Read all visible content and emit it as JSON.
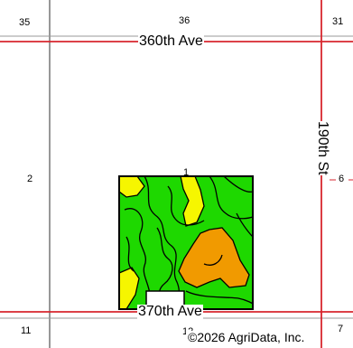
{
  "roads": {
    "north": "360th Ave",
    "south": "370th Ave",
    "east": "190th St"
  },
  "sections": {
    "nw": "35",
    "n": "36",
    "ne": "31",
    "w": "2",
    "e": "6",
    "sw": "11",
    "s": "12",
    "se": "7"
  },
  "field": {
    "number": "1"
  },
  "copyright": "©2026 AgriData, Inc.",
  "colors": {
    "road": "#d7262e",
    "section_line": "#777777",
    "soil_green": "#1ed800",
    "soil_yellow": "#f6f600",
    "soil_orange": "#f19a00",
    "boundary": "#000000"
  }
}
